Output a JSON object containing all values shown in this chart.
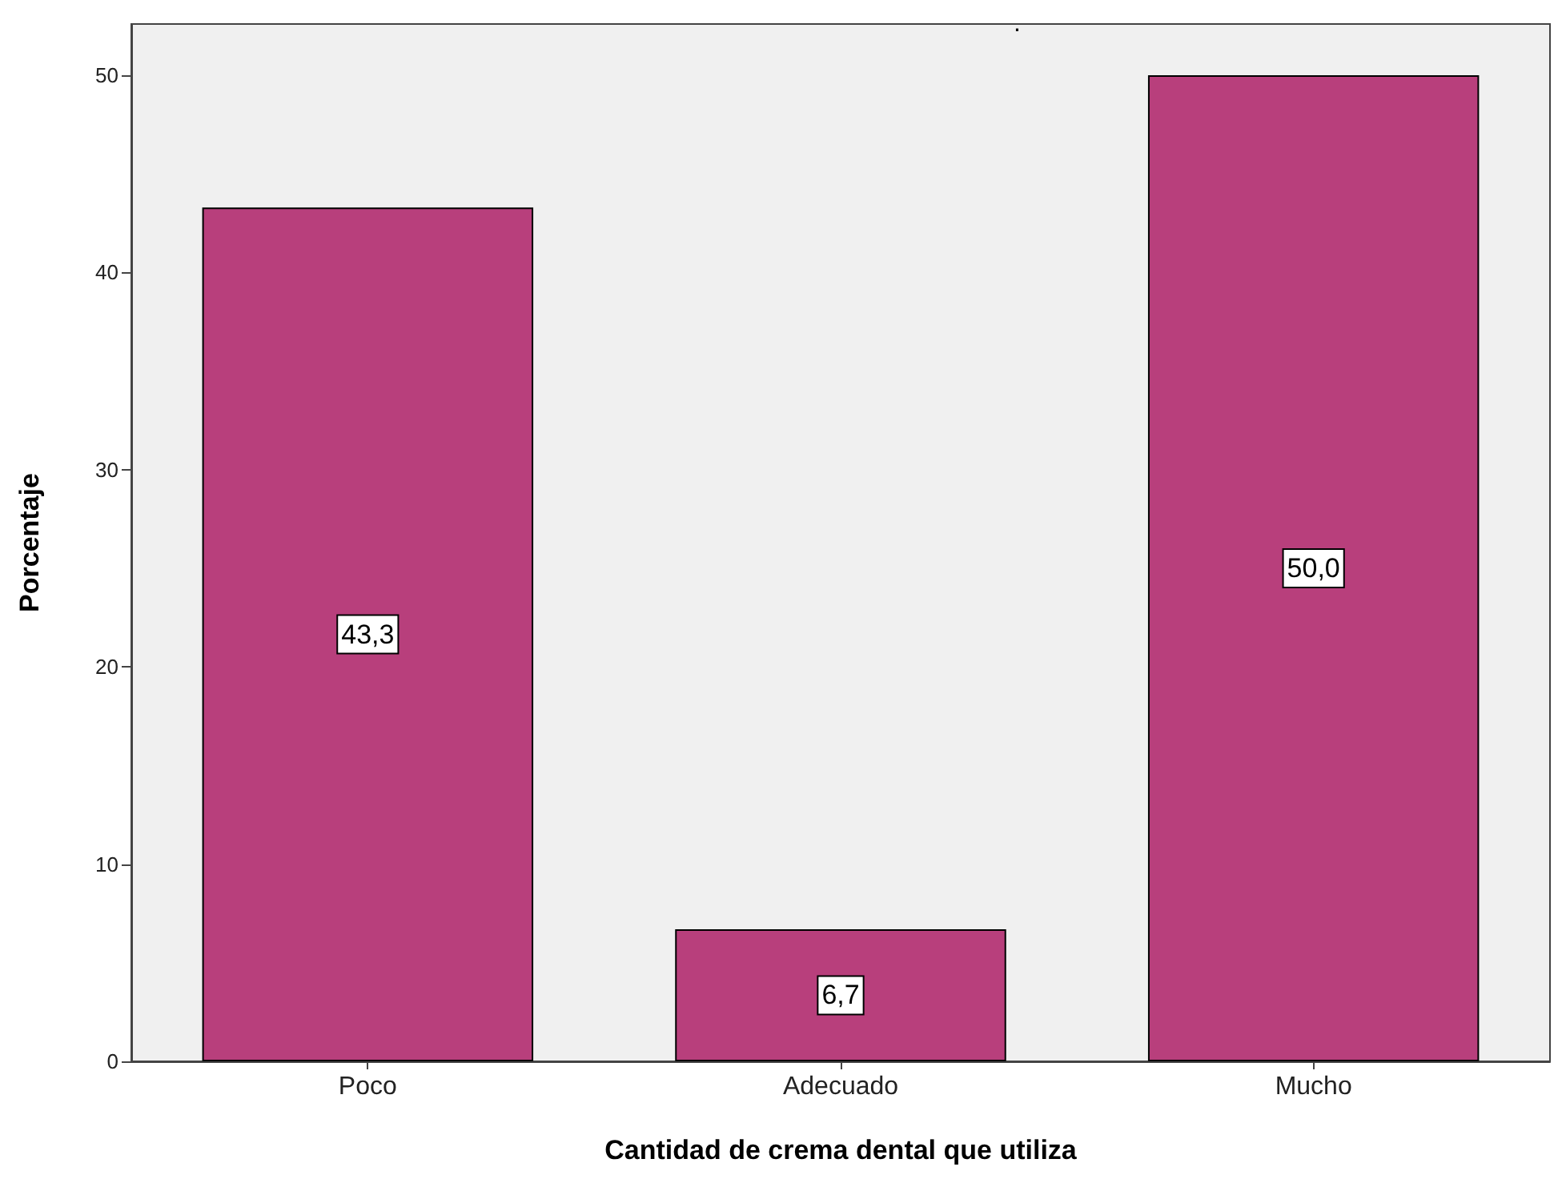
{
  "chart_data": {
    "type": "bar",
    "title": ".",
    "xlabel": "Cantidad de crema dental que utiliza",
    "ylabel": "Porcentaje",
    "categories": [
      "Poco",
      "Adecuado",
      "Mucho"
    ],
    "values": [
      43.3,
      6.7,
      50.0
    ],
    "value_labels": [
      "43,3",
      "6,7",
      "50,0"
    ],
    "color": "#b83f7c",
    "ylim": [
      0,
      52.6
    ],
    "yticks": [
      0,
      10,
      20,
      30,
      40,
      50
    ],
    "grid": false
  }
}
